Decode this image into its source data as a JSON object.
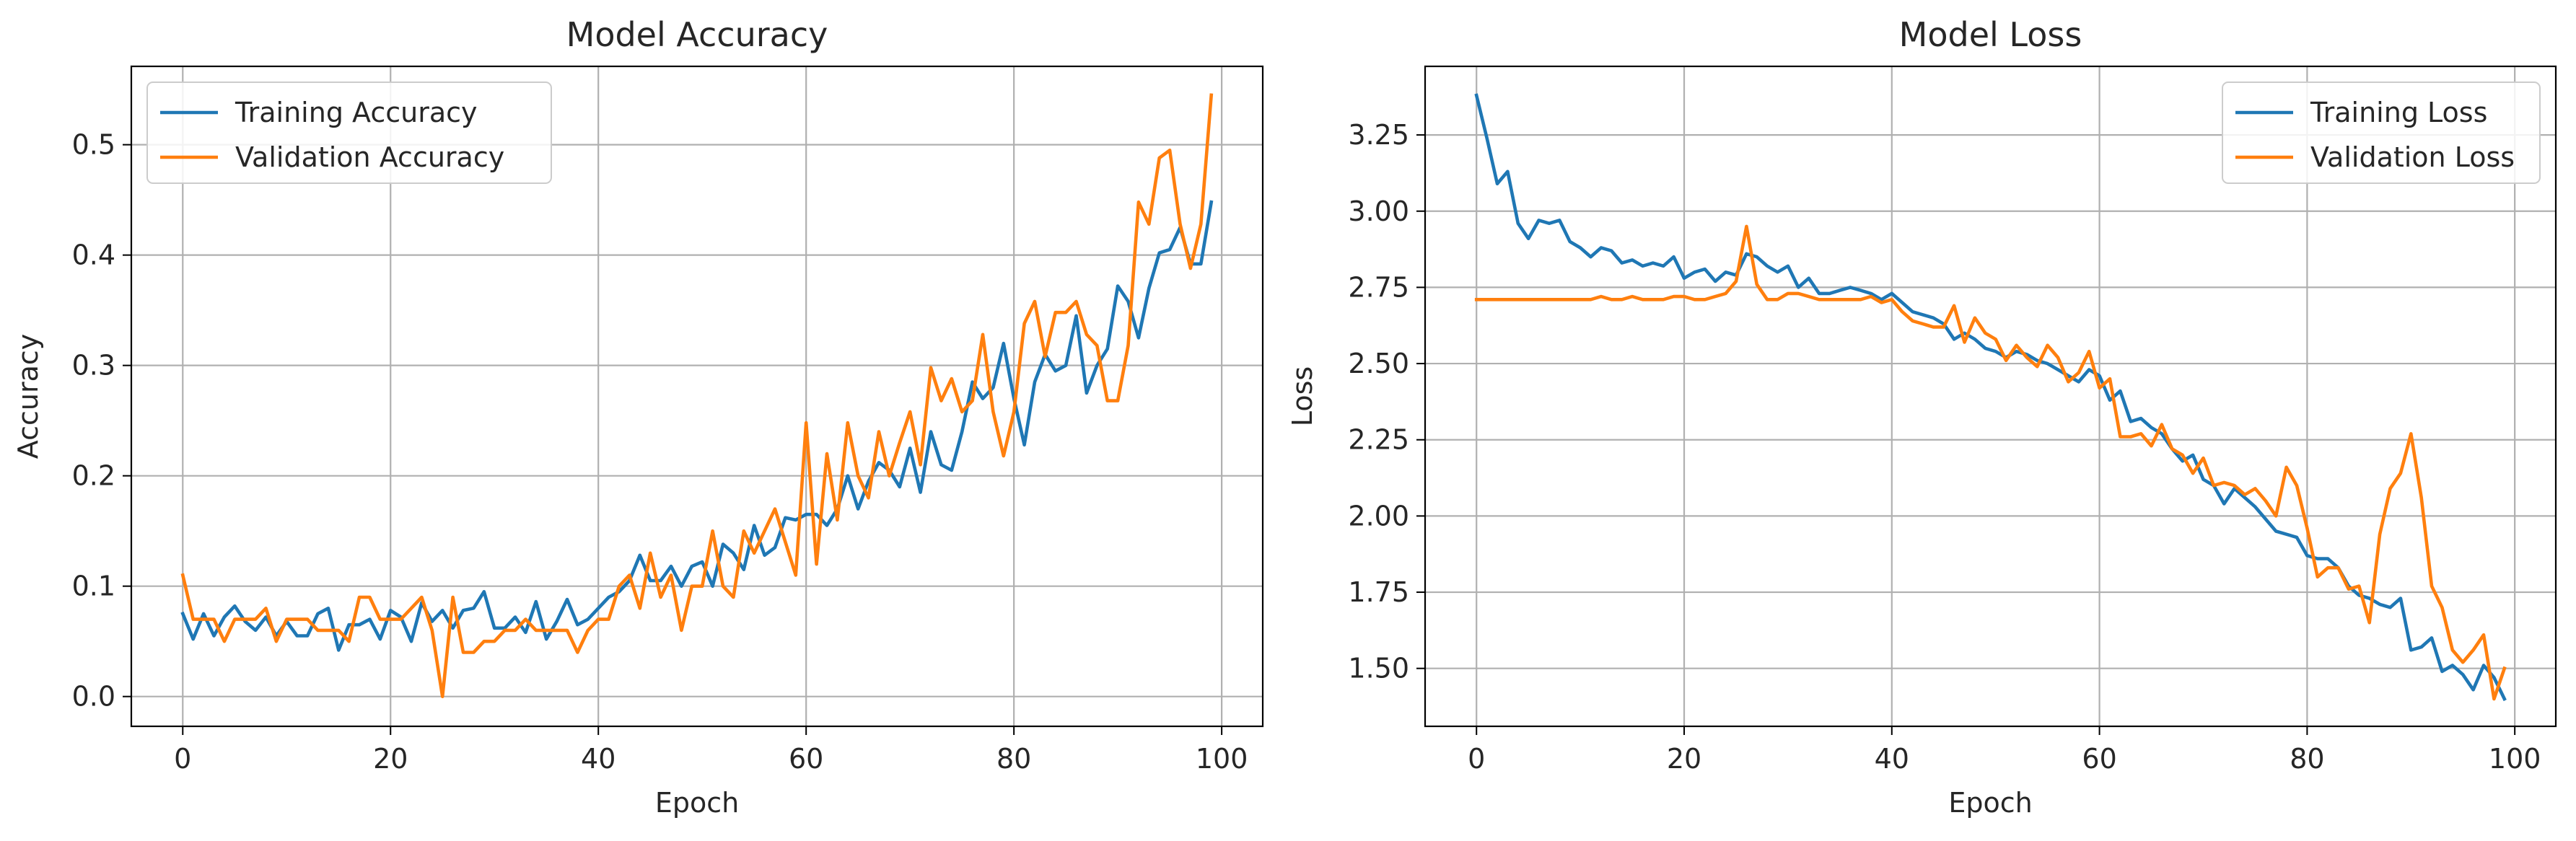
{
  "colors": {
    "series_1": "#1f77b4",
    "series_2": "#ff7f0e",
    "grid": "#b0b0b0",
    "axes": "#000000"
  },
  "chart_data": [
    {
      "type": "line",
      "title": "Model Accuracy",
      "xlabel": "Epoch",
      "ylabel": "Accuracy",
      "xlim": [
        -4.95,
        103.95
      ],
      "ylim": [
        -0.027,
        0.571
      ],
      "xticks": [
        0,
        20,
        40,
        60,
        80,
        100
      ],
      "xtick_labels": [
        "0",
        "20",
        "40",
        "60",
        "80",
        "100"
      ],
      "yticks": [
        0.0,
        0.1,
        0.2,
        0.3,
        0.4,
        0.5
      ],
      "ytick_labels": [
        "0.0",
        "0.1",
        "0.2",
        "0.3",
        "0.4",
        "0.5"
      ],
      "grid": true,
      "legend_position": "upper-left",
      "series": [
        {
          "name": "Training Accuracy",
          "color": "#1f77b4",
          "values": [
            0.075,
            0.052,
            0.075,
            0.055,
            0.072,
            0.082,
            0.068,
            0.06,
            0.072,
            0.055,
            0.068,
            0.055,
            0.055,
            0.075,
            0.08,
            0.042,
            0.065,
            0.065,
            0.07,
            0.052,
            0.078,
            0.072,
            0.05,
            0.085,
            0.068,
            0.078,
            0.062,
            0.078,
            0.08,
            0.095,
            0.062,
            0.062,
            0.072,
            0.058,
            0.086,
            0.052,
            0.068,
            0.088,
            0.065,
            0.07,
            0.08,
            0.09,
            0.095,
            0.105,
            0.128,
            0.105,
            0.105,
            0.118,
            0.1,
            0.118,
            0.122,
            0.1,
            0.138,
            0.13,
            0.115,
            0.155,
            0.128,
            0.135,
            0.162,
            0.16,
            0.165,
            0.165,
            0.155,
            0.17,
            0.2,
            0.17,
            0.195,
            0.212,
            0.205,
            0.19,
            0.225,
            0.185,
            0.24,
            0.21,
            0.205,
            0.24,
            0.285,
            0.27,
            0.28,
            0.32,
            0.27,
            0.228,
            0.285,
            0.31,
            0.295,
            0.3,
            0.345,
            0.275,
            0.3,
            0.315,
            0.372,
            0.358,
            0.325,
            0.37,
            0.402,
            0.405,
            0.425,
            0.392,
            0.392,
            0.448
          ]
        },
        {
          "name": "Validation Accuracy",
          "color": "#ff7f0e",
          "values": [
            0.11,
            0.07,
            0.07,
            0.07,
            0.05,
            0.07,
            0.07,
            0.07,
            0.08,
            0.05,
            0.07,
            0.07,
            0.07,
            0.06,
            0.06,
            0.06,
            0.05,
            0.09,
            0.09,
            0.07,
            0.07,
            0.07,
            0.08,
            0.09,
            0.06,
            0.0,
            0.09,
            0.04,
            0.04,
            0.05,
            0.05,
            0.06,
            0.06,
            0.07,
            0.06,
            0.06,
            0.06,
            0.06,
            0.04,
            0.06,
            0.07,
            0.07,
            0.1,
            0.11,
            0.08,
            0.13,
            0.09,
            0.11,
            0.06,
            0.1,
            0.1,
            0.15,
            0.1,
            0.09,
            0.15,
            0.13,
            0.15,
            0.17,
            0.14,
            0.11,
            0.248,
            0.12,
            0.22,
            0.16,
            0.248,
            0.2,
            0.18,
            0.24,
            0.2,
            0.23,
            0.258,
            0.21,
            0.298,
            0.268,
            0.288,
            0.258,
            0.268,
            0.328,
            0.258,
            0.218,
            0.258,
            0.338,
            0.358,
            0.308,
            0.348,
            0.348,
            0.358,
            0.328,
            0.318,
            0.268,
            0.268,
            0.318,
            0.448,
            0.428,
            0.488,
            0.495,
            0.428,
            0.388,
            0.428,
            0.545
          ]
        }
      ]
    },
    {
      "type": "line",
      "title": "Model Loss",
      "xlabel": "Epoch",
      "ylabel": "Loss",
      "xlim": [
        -4.95,
        103.95
      ],
      "ylim": [
        1.31,
        3.475
      ],
      "xticks": [
        0,
        20,
        40,
        60,
        80,
        100
      ],
      "xtick_labels": [
        "0",
        "20",
        "40",
        "60",
        "80",
        "100"
      ],
      "yticks": [
        1.5,
        1.75,
        2.0,
        2.25,
        2.5,
        2.75,
        3.0,
        3.25
      ],
      "ytick_labels": [
        "1.50",
        "1.75",
        "2.00",
        "2.25",
        "2.50",
        "2.75",
        "3.00",
        "3.25"
      ],
      "grid": true,
      "legend_position": "upper-right",
      "series": [
        {
          "name": "Training Loss",
          "color": "#1f77b4",
          "values": [
            3.38,
            3.24,
            3.09,
            3.13,
            2.96,
            2.91,
            2.97,
            2.96,
            2.97,
            2.9,
            2.88,
            2.85,
            2.88,
            2.87,
            2.83,
            2.84,
            2.82,
            2.83,
            2.82,
            2.85,
            2.78,
            2.8,
            2.81,
            2.77,
            2.8,
            2.79,
            2.86,
            2.85,
            2.82,
            2.8,
            2.82,
            2.75,
            2.78,
            2.73,
            2.73,
            2.74,
            2.75,
            2.74,
            2.73,
            2.71,
            2.73,
            2.7,
            2.67,
            2.66,
            2.65,
            2.63,
            2.58,
            2.6,
            2.58,
            2.55,
            2.54,
            2.52,
            2.54,
            2.53,
            2.51,
            2.5,
            2.48,
            2.46,
            2.44,
            2.48,
            2.46,
            2.38,
            2.41,
            2.31,
            2.32,
            2.29,
            2.27,
            2.22,
            2.18,
            2.2,
            2.12,
            2.1,
            2.04,
            2.09,
            2.06,
            2.03,
            1.99,
            1.95,
            1.94,
            1.93,
            1.87,
            1.86,
            1.86,
            1.83,
            1.77,
            1.74,
            1.73,
            1.71,
            1.7,
            1.73,
            1.56,
            1.57,
            1.6,
            1.49,
            1.51,
            1.48,
            1.43,
            1.51,
            1.47,
            1.4
          ]
        },
        {
          "name": "Validation Loss",
          "color": "#ff7f0e",
          "values": [
            2.71,
            2.71,
            2.71,
            2.71,
            2.71,
            2.71,
            2.71,
            2.71,
            2.71,
            2.71,
            2.71,
            2.71,
            2.72,
            2.71,
            2.71,
            2.72,
            2.71,
            2.71,
            2.71,
            2.72,
            2.72,
            2.71,
            2.71,
            2.72,
            2.73,
            2.77,
            2.95,
            2.76,
            2.71,
            2.71,
            2.73,
            2.73,
            2.72,
            2.71,
            2.71,
            2.71,
            2.71,
            2.71,
            2.72,
            2.7,
            2.71,
            2.67,
            2.64,
            2.63,
            2.62,
            2.62,
            2.69,
            2.57,
            2.65,
            2.6,
            2.58,
            2.51,
            2.56,
            2.52,
            2.49,
            2.56,
            2.52,
            2.44,
            2.47,
            2.54,
            2.42,
            2.45,
            2.26,
            2.26,
            2.27,
            2.23,
            2.3,
            2.22,
            2.2,
            2.14,
            2.19,
            2.1,
            2.11,
            2.1,
            2.07,
            2.09,
            2.05,
            2.0,
            2.16,
            2.1,
            1.96,
            1.8,
            1.83,
            1.83,
            1.76,
            1.77,
            1.65,
            1.94,
            2.09,
            2.14,
            2.27,
            2.06,
            1.77,
            1.7,
            1.56,
            1.52,
            1.56,
            1.61,
            1.4,
            1.5
          ]
        }
      ]
    }
  ]
}
